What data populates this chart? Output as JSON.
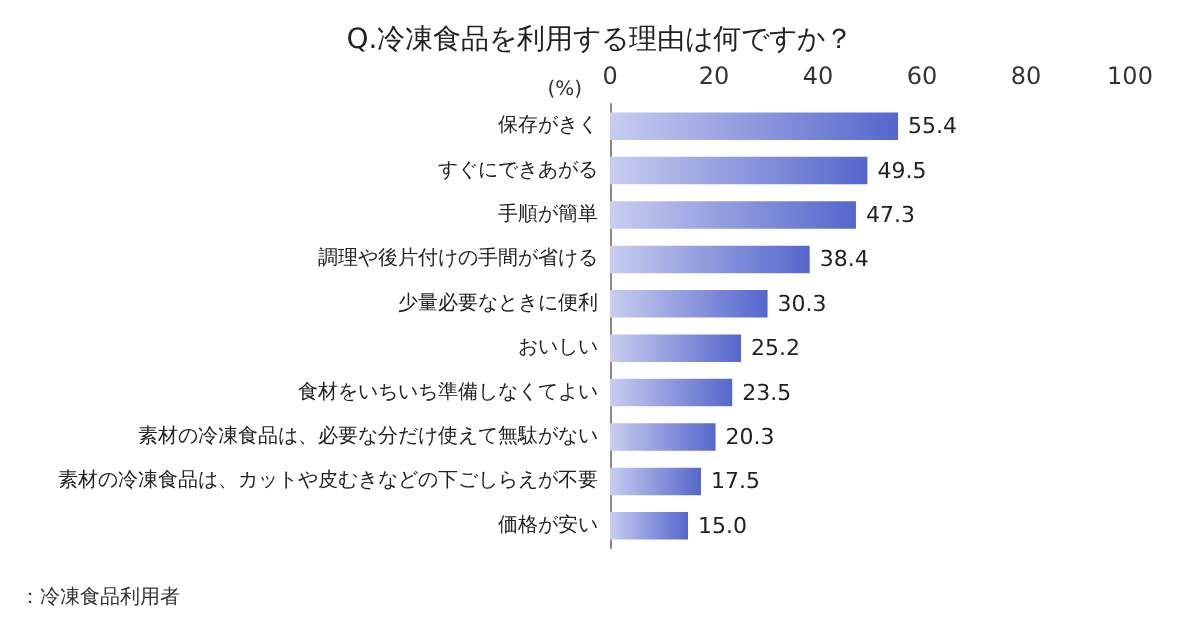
{
  "chart_data": {
    "type": "bar",
    "orientation": "horizontal",
    "title": "Q.冷凍食品を利用する理由は何ですか？",
    "xlabel": "(%)",
    "categories": [
      "保存がきく",
      "すぐにできあがる",
      "手順が簡単",
      "調理や後片付けの手間が省ける",
      "少量必要なときに便利",
      "おいしい",
      "食材をいちいち準備しなくてよい",
      "素材の冷凍食品は、必要な分だけ使えて無駄がない",
      "素材の冷凍食品は、カットや皮むきなどの下ごしらえが不要",
      "価格が安い"
    ],
    "values": [
      55.4,
      49.5,
      47.3,
      38.4,
      30.3,
      25.2,
      23.5,
      20.3,
      17.5,
      15.0
    ],
    "value_labels": [
      "55.4",
      "49.5",
      "47.3",
      "38.4",
      "30.3",
      "25.2",
      "23.5",
      "20.3",
      "17.5",
      "15.0"
    ],
    "color": "#5566cc",
    "xlim": [
      0,
      100
    ],
    "xticks": [
      0,
      20,
      40,
      60,
      80,
      100
    ],
    "grid": false,
    "annotations": [
      "：冷凍食品利用者"
    ]
  }
}
